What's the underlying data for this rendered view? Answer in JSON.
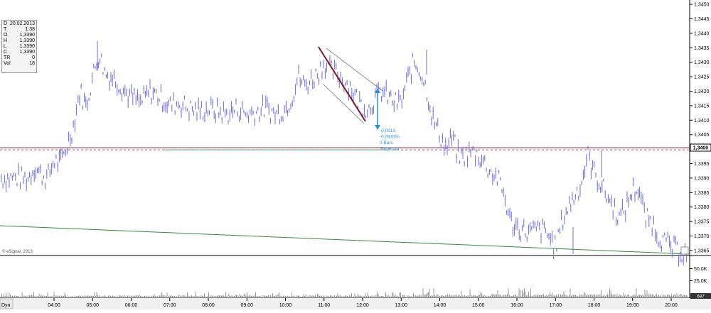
{
  "info_box": {
    "rows": [
      {
        "k": "D",
        "v": "20.02.2013"
      },
      {
        "k": "T",
        "v": "1:38"
      },
      {
        "k": "O",
        "v": "1,3390"
      },
      {
        "k": "H",
        "v": "1,3390"
      },
      {
        "k": "L",
        "v": "1,3390"
      },
      {
        "k": "C",
        "v": "1,3390"
      },
      {
        "k": "TR",
        "v": "0"
      },
      {
        "k": "Vol",
        "v": "18"
      }
    ]
  },
  "watermark": "© eSignal, 2013",
  "volume_pane_label": "Dyn",
  "price_readout": "1,3400",
  "volume_readout": "697",
  "annotation": {
    "lines": [
      "-0,0013",
      "-0,0933%",
      "0 Bars",
      "Slope n/a"
    ]
  },
  "colors": {
    "price_bars": "#6b6be0",
    "trend_line": "#7a1a22",
    "channel_lines": "#7a7a7a",
    "measure_arrow": "#2090e0",
    "support_line": "#3a8a3a",
    "horizontal_line": "#8b2040",
    "annotation_text": "#2a8fd6"
  },
  "chart_data": {
    "type": "ohlc",
    "x_ticks": [
      "04:00",
      "05:00",
      "06:00",
      "07:00",
      "08:00",
      "09:00",
      "10:00",
      "11:00",
      "12:00",
      "13:00",
      "14:00",
      "15:00",
      "16:00",
      "17:00",
      "18:00",
      "19:00",
      "20:00"
    ],
    "y_ticks": [
      "1,3450",
      "1,3445",
      "1,3440",
      "1,3435",
      "1,3430",
      "1,3425",
      "1,3420",
      "1,3415",
      "1,3410",
      "1,3405",
      "1,3400",
      "1,3395",
      "1,3390",
      "1,3385",
      "1,3380",
      "1,3375",
      "1,3370",
      "1,3365"
    ],
    "volume_ticks": [
      "50,0K",
      "25,0K"
    ],
    "ylim": [
      1.33635,
      1.34515
    ],
    "horizontal_level": 1.34,
    "series": [
      {
        "x": [
          3.33,
          3.5,
          3.67,
          3.83,
          4.0,
          4.17,
          4.33,
          4.5,
          4.67,
          4.83,
          5.0,
          5.17,
          5.33,
          5.5,
          5.67,
          5.83,
          6.0,
          6.25,
          6.5,
          6.75,
          7.0,
          7.25,
          7.5,
          7.75,
          8.0,
          8.25,
          8.5,
          8.75,
          9.0,
          9.25,
          9.5,
          9.75,
          10.0,
          10.17,
          10.33,
          10.5,
          10.67,
          10.83,
          11.0,
          11.17,
          11.33,
          11.5,
          11.67,
          11.83,
          12.0,
          12.17,
          12.33,
          12.5,
          12.67,
          12.83,
          13.0,
          13.17,
          13.33,
          13.5,
          13.67,
          13.83,
          14.0,
          14.17,
          14.33,
          14.5,
          14.67,
          14.83,
          15.0,
          15.17,
          15.33,
          15.5,
          15.67,
          15.83,
          16.0,
          16.17,
          16.33,
          16.5,
          16.67,
          16.83,
          17.0,
          17.17,
          17.33,
          17.5,
          17.67,
          17.83,
          18.0,
          18.17,
          18.33,
          18.5,
          18.67,
          18.83,
          19.0,
          19.17,
          19.33,
          19.5,
          19.67,
          19.83,
          20.0,
          20.17,
          20.3
        ],
        "y": [
          1.339,
          1.3394,
          1.3391,
          1.339,
          1.3396,
          1.3395,
          1.3401,
          1.3408,
          1.342,
          1.3415,
          1.3425,
          1.3433,
          1.3426,
          1.3425,
          1.3423,
          1.342,
          1.3418,
          1.3416,
          1.342,
          1.3418,
          1.3415,
          1.3416,
          1.3414,
          1.3413,
          1.3414,
          1.3413,
          1.3412,
          1.3414,
          1.3412,
          1.3413,
          1.3414,
          1.3412,
          1.3414,
          1.3418,
          1.3425,
          1.3422,
          1.3424,
          1.3426,
          1.343,
          1.3427,
          1.3426,
          1.3424,
          1.3422,
          1.3418,
          1.3415,
          1.3414,
          1.3418,
          1.342,
          1.3418,
          1.3416,
          1.3416,
          1.3424,
          1.343,
          1.3427,
          1.342,
          1.341,
          1.3405,
          1.34,
          1.3404,
          1.3397,
          1.3398,
          1.3399,
          1.3398,
          1.3395,
          1.3392,
          1.339,
          1.3384,
          1.3375,
          1.3373,
          1.3372,
          1.3371,
          1.3372,
          1.3372,
          1.337,
          1.3366,
          1.3375,
          1.338,
          1.3384,
          1.3388,
          1.3398,
          1.3392,
          1.3388,
          1.3384,
          1.338,
          1.3376,
          1.338,
          1.3386,
          1.3386,
          1.3376,
          1.3375,
          1.337,
          1.3368,
          1.3366,
          1.3365,
          1.3364
        ]
      }
    ]
  }
}
